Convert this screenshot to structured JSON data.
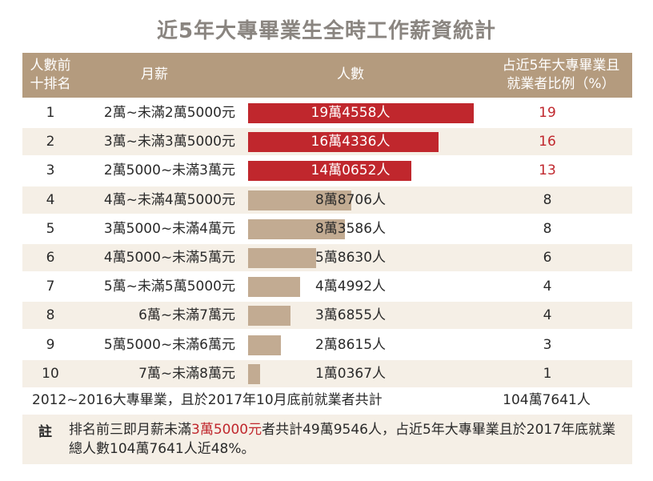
{
  "chart_data": {
    "type": "table",
    "title": "近5年大專畢業生全時工作薪資統計",
    "columns": [
      "人數前十排名",
      "月薪",
      "人數",
      "占近5年大專畢業且就業者比例（%）"
    ],
    "rows": [
      {
        "rank": "1",
        "salary": "2萬~未滿2萬5000元",
        "count": 194558,
        "count_label": "19萬4558人",
        "pct": "19",
        "highlight": true
      },
      {
        "rank": "2",
        "salary": "3萬~未滿3萬5000元",
        "count": 164336,
        "count_label": "16萬4336人",
        "pct": "16",
        "highlight": true
      },
      {
        "rank": "3",
        "salary": "2萬5000~未滿3萬元",
        "count": 140652,
        "count_label": "14萬0652人",
        "pct": "13",
        "highlight": true
      },
      {
        "rank": "4",
        "salary": "4萬~未滿4萬5000元",
        "count": 88706,
        "count_label": "8萬8706人",
        "pct": "8",
        "highlight": false
      },
      {
        "rank": "5",
        "salary": "3萬5000~未滿4萬元",
        "count": 83586,
        "count_label": "8萬3586人",
        "pct": "8",
        "highlight": false
      },
      {
        "rank": "6",
        "salary": "4萬5000~未滿5萬元",
        "count": 58630,
        "count_label": "5萬8630人",
        "pct": "6",
        "highlight": false
      },
      {
        "rank": "7",
        "salary": "5萬~未滿5萬5000元",
        "count": 44992,
        "count_label": "4萬4992人",
        "pct": "4",
        "highlight": false
      },
      {
        "rank": "8",
        "salary": "6萬~未滿7萬元",
        "count": 36855,
        "count_label": "3萬6855人",
        "pct": "4",
        "highlight": false
      },
      {
        "rank": "9",
        "salary": "5萬5000~未滿6萬元",
        "count": 28615,
        "count_label": "2萬8615人",
        "pct": "3",
        "highlight": false
      },
      {
        "rank": "10",
        "salary": "7萬~未滿8萬元",
        "count": 10367,
        "count_label": "1萬0367人",
        "pct": "1",
        "highlight": false
      }
    ],
    "bar_max": 200000,
    "total_label": "2012~2016大專畢業，且於2017年10月底前就業者共計",
    "total_value": "104萬7641人"
  },
  "header": {
    "rank_line1": "人數前",
    "rank_line2": "十排名",
    "salary": "月薪",
    "count": "人數",
    "pct_line1": "占近5年大專畢業且",
    "pct_line2": "就業者比例（%）"
  },
  "note": {
    "label": "註",
    "text_before": "排名前三即月薪未滿",
    "highlight": "3萬5000元",
    "text_after": "者共計49萬9546人，占近5年大專畢業且於2017年底就業總人數104萬7641人近48%。"
  },
  "colors": {
    "highlight_bar": "#c0272d",
    "normal_bar": "#c2ab92",
    "header_bg": "#b49b7e",
    "stripe": "#f5efe6"
  }
}
